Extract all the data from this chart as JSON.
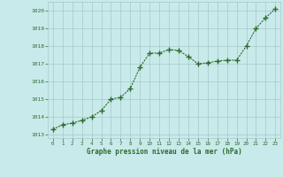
{
  "x": [
    0,
    1,
    2,
    3,
    4,
    5,
    6,
    7,
    8,
    9,
    10,
    11,
    12,
    13,
    14,
    15,
    16,
    17,
    18,
    19,
    20,
    21,
    22,
    23
  ],
  "y": [
    1013.3,
    1013.55,
    1013.65,
    1013.8,
    1014.0,
    1014.35,
    1015.0,
    1015.1,
    1015.6,
    1016.8,
    1017.6,
    1017.6,
    1017.8,
    1017.75,
    1017.4,
    1017.0,
    1017.05,
    1017.15,
    1017.2,
    1017.2,
    1018.0,
    1019.0,
    1019.6,
    1020.1
  ],
  "line_color": "#2d6a2d",
  "marker_color": "#2d6a2d",
  "bg_color": "#c8eaea",
  "grid_color": "#a8c8c8",
  "xlabel": "Graphe pression niveau de la mer (hPa)",
  "xlabel_color": "#2d6a2d",
  "tick_color": "#2d6a2d",
  "ylim": [
    1012.8,
    1020.5
  ],
  "yticks": [
    1013,
    1014,
    1015,
    1016,
    1017,
    1018,
    1019,
    1020
  ],
  "xlim": [
    -0.5,
    23.5
  ],
  "xticks": [
    0,
    1,
    2,
    3,
    4,
    5,
    6,
    7,
    8,
    9,
    10,
    11,
    12,
    13,
    14,
    15,
    16,
    17,
    18,
    19,
    20,
    21,
    22,
    23
  ]
}
